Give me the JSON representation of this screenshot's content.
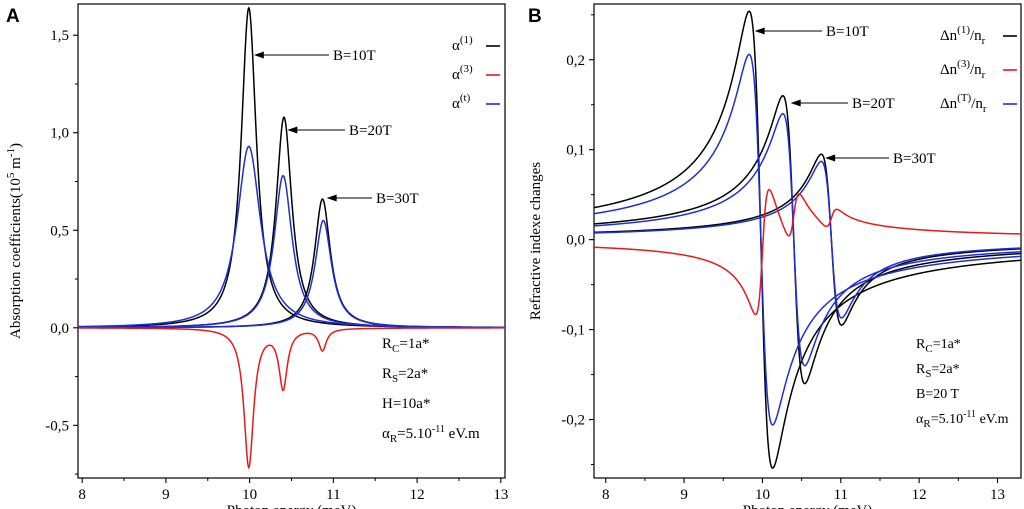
{
  "chart_data": [
    {
      "panel": "A",
      "type": "line",
      "xlabel": "Photon energy (meV)",
      "ylabel": "Absorption coefficients(10^5 m^-1)",
      "xlim": [
        7.95,
        13.05
      ],
      "ylim": [
        -0.77,
        1.66
      ],
      "xticks": [
        8,
        9,
        10,
        11,
        12,
        13
      ],
      "xtick_labels": [
        "8",
        "9",
        "10",
        "11",
        "12",
        "13"
      ],
      "yticks": [
        -0.5,
        0.0,
        0.5,
        1.0,
        1.5
      ],
      "ytick_labels": [
        "-0,5",
        "0,0",
        "0,5",
        "1,0",
        "1,5"
      ],
      "legend": [
        {
          "base": "α",
          "sup": "(1)",
          "color": "#000000"
        },
        {
          "base": "α",
          "sup": "(3)",
          "color": "#e41a1a"
        },
        {
          "base": "α",
          "sup": "(t)",
          "color": "#1f2fd0"
        }
      ],
      "series": [
        {
          "name": "α(1) B=10T",
          "kind": "lorentz",
          "color": "#000000",
          "center": 9.99,
          "width": 0.11,
          "peak": 1.64
        },
        {
          "name": "α(1) B=20T",
          "kind": "lorentz",
          "color": "#000000",
          "center": 10.41,
          "width": 0.115,
          "peak": 1.08
        },
        {
          "name": "α(1) B=30T",
          "kind": "lorentz",
          "color": "#000000",
          "center": 10.87,
          "width": 0.115,
          "peak": 0.66
        },
        {
          "name": "α(t) B=10T",
          "kind": "lorentz",
          "color": "#1f2fd0",
          "center": 9.99,
          "width": 0.17,
          "peak": 0.93
        },
        {
          "name": "α(t) B=20T",
          "kind": "lorentz",
          "color": "#1f2fd0",
          "center": 10.4,
          "width": 0.13,
          "peak": 0.78
        },
        {
          "name": "α(t) B=30T",
          "kind": "lorentz",
          "color": "#1f2fd0",
          "center": 10.88,
          "width": 0.12,
          "peak": 0.55
        },
        {
          "name": "α(3) total",
          "kind": "sum",
          "color": "#e41a1a",
          "terms": [
            {
              "center": 9.99,
              "width": 0.07,
              "peak": -0.71
            },
            {
              "center": 10.4,
              "width": 0.06,
              "peak": -0.3
            },
            {
              "center": 10.87,
              "width": 0.055,
              "peak": -0.11
            }
          ]
        }
      ],
      "annotations": [
        {
          "text": "B=10T",
          "arrow_to": [
            10.05,
            1.47
          ]
        },
        {
          "text": "B=20T",
          "arrow_to": [
            10.45,
            1.07
          ]
        },
        {
          "text": "B=30T",
          "arrow_to": [
            10.92,
            0.65
          ]
        }
      ],
      "parameters": [
        {
          "base": "R",
          "sub": "C",
          "sup": "",
          "rest": "=1a*"
        },
        {
          "base": "R",
          "sub": "S",
          "sup": "",
          "rest": "=2a*"
        },
        {
          "base": "H=10a*",
          "sub": "",
          "sup": "",
          "rest": ""
        },
        {
          "base": "α",
          "sub": "R",
          "sup": "",
          "rest": "=5.10",
          "sup2": "-11",
          "rest2": " eV.m"
        }
      ]
    },
    {
      "panel": "B",
      "type": "line",
      "xlabel": "Photon energy (meV)",
      "ylabel": "Refractive indexe changes",
      "xlim": [
        7.85,
        13.3
      ],
      "ylim": [
        -0.265,
        0.262
      ],
      "xticks": [
        8,
        9,
        10,
        11,
        12,
        13
      ],
      "xtick_labels": [
        "8",
        "9",
        "10",
        "11",
        "12",
        "13"
      ],
      "yticks": [
        -0.2,
        -0.1,
        0.0,
        0.1,
        0.2
      ],
      "ytick_labels": [
        "-0,2",
        "-0,1",
        "0,0",
        "0,1",
        "0,2"
      ],
      "legend": [
        {
          "base": "Δn",
          "sup": "(1)",
          "tail": "/n",
          "sub": "r",
          "color": "#000000"
        },
        {
          "base": "Δn",
          "sup": "(3)",
          "tail": "/n",
          "sub": "r",
          "color": "#e41a1a"
        },
        {
          "base": "Δn",
          "sup": "(T)",
          "tail": "/n",
          "sub": "r",
          "color": "#1f2fd0"
        }
      ],
      "series": [
        {
          "name": "Δn(1)/nr B=10T",
          "kind": "dispersion",
          "color": "#000000",
          "center": 9.98,
          "width": 0.15,
          "amp": 0.254
        },
        {
          "name": "Δn(1)/nr B=20T",
          "kind": "dispersion",
          "color": "#000000",
          "center": 10.4,
          "width": 0.14,
          "amp": 0.16
        },
        {
          "name": "Δn(1)/nr B=30T",
          "kind": "dispersion",
          "color": "#000000",
          "center": 10.88,
          "width": 0.13,
          "amp": 0.095
        },
        {
          "name": "Δn(T)/nr B=10T",
          "kind": "dispersion",
          "color": "#1f2fd0",
          "center": 9.98,
          "width": 0.15,
          "amp": 0.206
        },
        {
          "name": "Δn(T)/nr B=20T",
          "kind": "dispersion",
          "color": "#1f2fd0",
          "center": 10.4,
          "width": 0.14,
          "amp": 0.14
        },
        {
          "name": "Δn(T)/nr B=30T",
          "kind": "dispersion",
          "color": "#1f2fd0",
          "center": 10.88,
          "width": 0.13,
          "amp": 0.087
        },
        {
          "name": "Δn(3)/nr total",
          "kind": "sum",
          "color": "#e41a1a",
          "terms": [
            {
              "center": 10.0,
              "width": 0.09,
              "amp": -0.072,
              "kind": "dispersion"
            },
            {
              "center": 10.4,
              "width": 0.08,
              "amp": -0.029,
              "kind": "dispersion"
            },
            {
              "center": 10.88,
              "width": 0.08,
              "amp": -0.012,
              "kind": "dispersion"
            }
          ]
        }
      ],
      "annotations": [
        {
          "text": "B=10T",
          "arrow_to": [
            9.9,
            0.225
          ]
        },
        {
          "text": "B=20T",
          "arrow_to": [
            10.36,
            0.138
          ]
        },
        {
          "text": "B=30T",
          "arrow_to": [
            10.8,
            0.081
          ]
        }
      ],
      "parameters": [
        {
          "base": "R",
          "sub": "C",
          "sup": "",
          "rest": "=1a*"
        },
        {
          "base": "R",
          "sub": "S",
          "sup": "",
          "rest": "=2a*"
        },
        {
          "base": "B=20 T",
          "sub": "",
          "sup": "",
          "rest": ""
        },
        {
          "base": "α",
          "sub": "R",
          "sup": "",
          "rest": "=5.10",
          "sup2": "-11",
          "rest2": " eV.m"
        }
      ]
    }
  ]
}
